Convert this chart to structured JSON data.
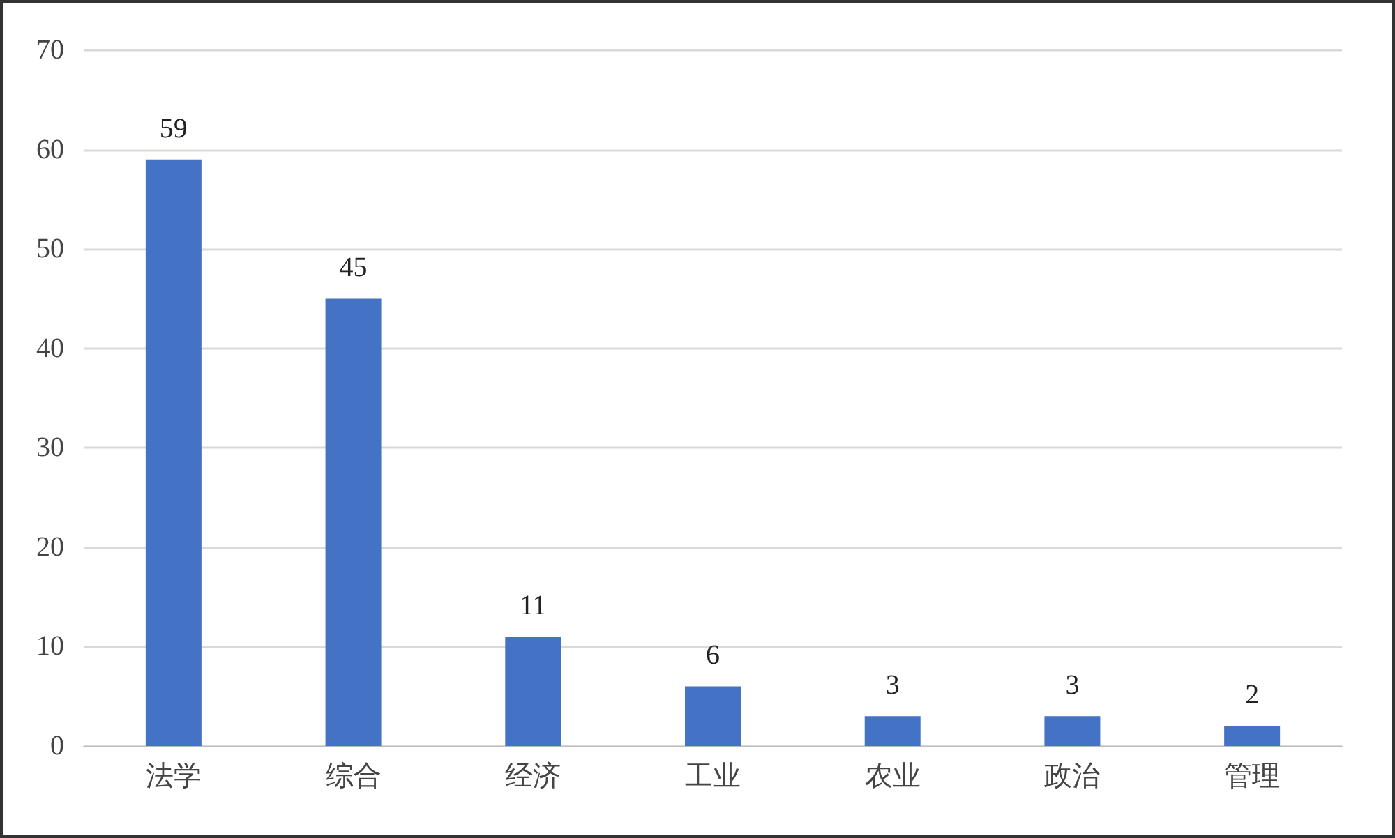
{
  "chart_data": {
    "type": "bar",
    "categories": [
      "法学",
      "综合",
      "经济",
      "工业",
      "农业",
      "政治",
      "管理"
    ],
    "values": [
      59,
      45,
      11,
      6,
      3,
      3,
      2
    ],
    "color": "#4472c4",
    "ylim": [
      0,
      70
    ],
    "yticks": [
      0,
      10,
      20,
      30,
      40,
      50,
      60,
      70
    ],
    "grid": "y",
    "data_labels": true
  }
}
